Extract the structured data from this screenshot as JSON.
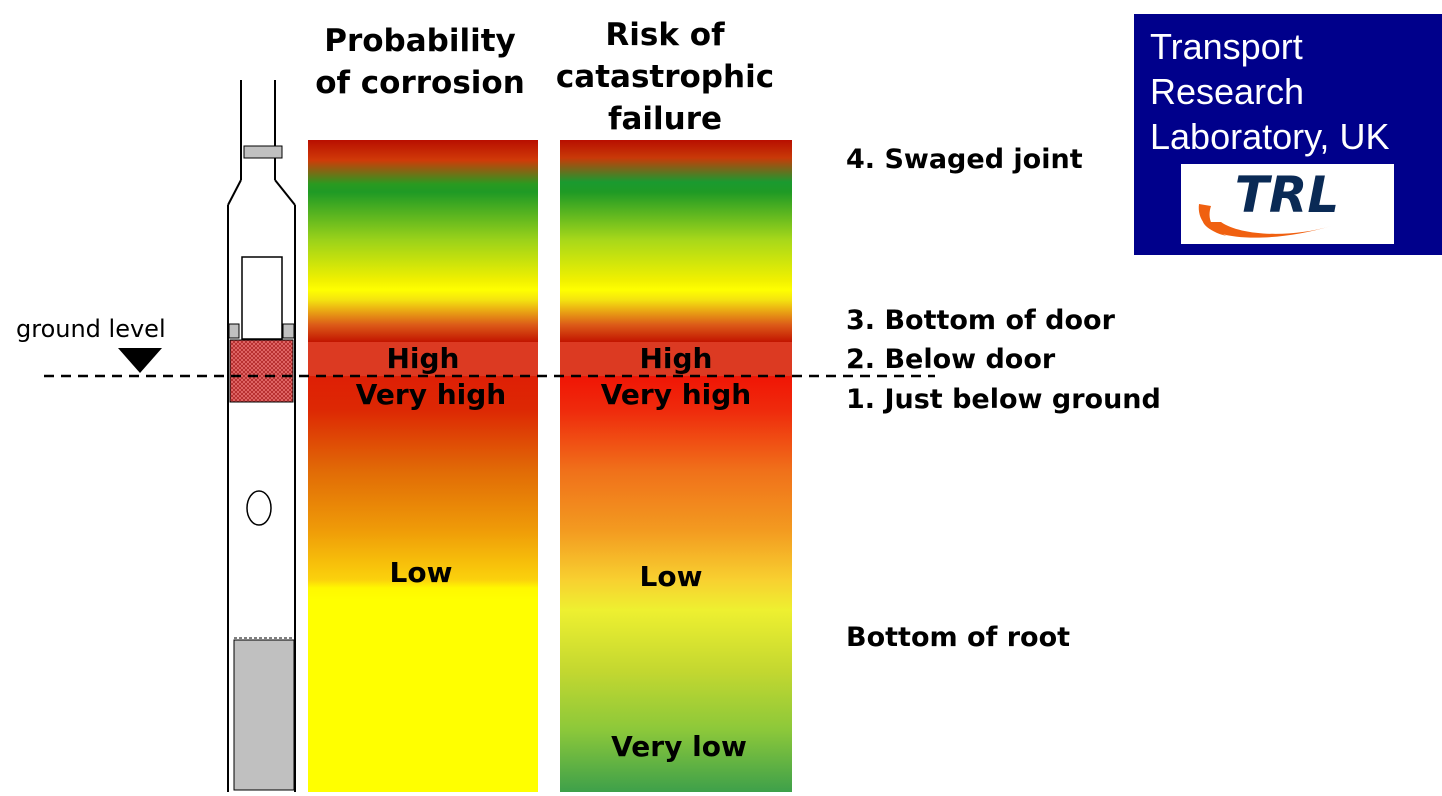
{
  "columns": [
    {
      "title": "Probability\nof corrosion",
      "labels": {
        "high": "High",
        "very_high": "Very high",
        "low": "Low"
      }
    },
    {
      "title": "Risk of\ncatastrophic\nfailure",
      "labels": {
        "high": "High",
        "very_high": "Very high",
        "low": "Low",
        "very_low": "Very low"
      }
    }
  ],
  "ground_label": "ground level",
  "positions": [
    "4. Swaged joint",
    "3. Bottom of door",
    "2. Below door",
    "1. Just below ground",
    "Bottom of root"
  ],
  "logo": {
    "text": "Transport\nResearch\nLaboratory, UK",
    "mark": "TRL",
    "box_color": "#00008b",
    "mark_color": "#0a2a55",
    "swoosh_color": "#f06010"
  },
  "colors": {
    "high_risk": "#c21500",
    "medium": "#ffff00",
    "low_risk": "#1f9a25"
  }
}
